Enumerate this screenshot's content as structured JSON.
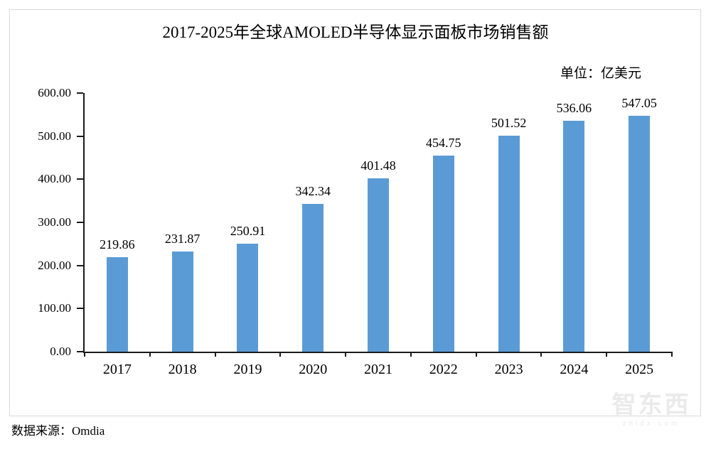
{
  "chart_data": {
    "type": "bar",
    "title": "2017-2025年全球AMOLED半导体显示面板市场销售额",
    "unit_annotation": "单位：亿美元",
    "categories": [
      "2017",
      "2018",
      "2019",
      "2020",
      "2021",
      "2022",
      "2023",
      "2024",
      "2025"
    ],
    "values": [
      219.86,
      231.87,
      250.91,
      342.34,
      401.48,
      454.75,
      501.52,
      536.06,
      547.05
    ],
    "data_labels": [
      "219.86",
      "231.87",
      "250.91",
      "342.34",
      "401.48",
      "454.75",
      "501.52",
      "536.06",
      "547.05"
    ],
    "xlabel": "",
    "ylabel": "",
    "ylim": [
      0,
      600
    ],
    "ytick_labels": [
      "0.00",
      "100.00",
      "200.00",
      "300.00",
      "400.00",
      "500.00",
      "600.00"
    ],
    "grid": false,
    "legend": "none"
  },
  "footer": {
    "source": "数据来源：Omdia"
  },
  "watermark": {
    "title": "智东西",
    "domain": "zhidx.com"
  },
  "colors": {
    "bar": "#5B9BD5",
    "axis": "#1a1a1a",
    "frame_border": "#d9d9d9",
    "watermark": "#eaeaea"
  }
}
